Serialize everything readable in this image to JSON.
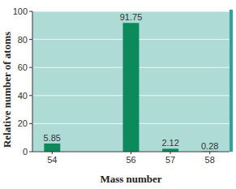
{
  "chart_data": {
    "type": "bar",
    "x": [
      54,
      56,
      57,
      58
    ],
    "values": [
      5.85,
      91.75,
      2.12,
      0.28
    ],
    "xlim": [
      53.5,
      58.5
    ],
    "xticks": [
      54,
      56,
      57,
      58
    ],
    "ylim": [
      0,
      100
    ],
    "yticks": [
      0,
      20,
      40,
      60,
      80,
      100
    ],
    "x_label": "Mass number",
    "y_label": "Relative number of atoms",
    "color": "#0d8a5c",
    "grid": true,
    "data_labels": true
  }
}
